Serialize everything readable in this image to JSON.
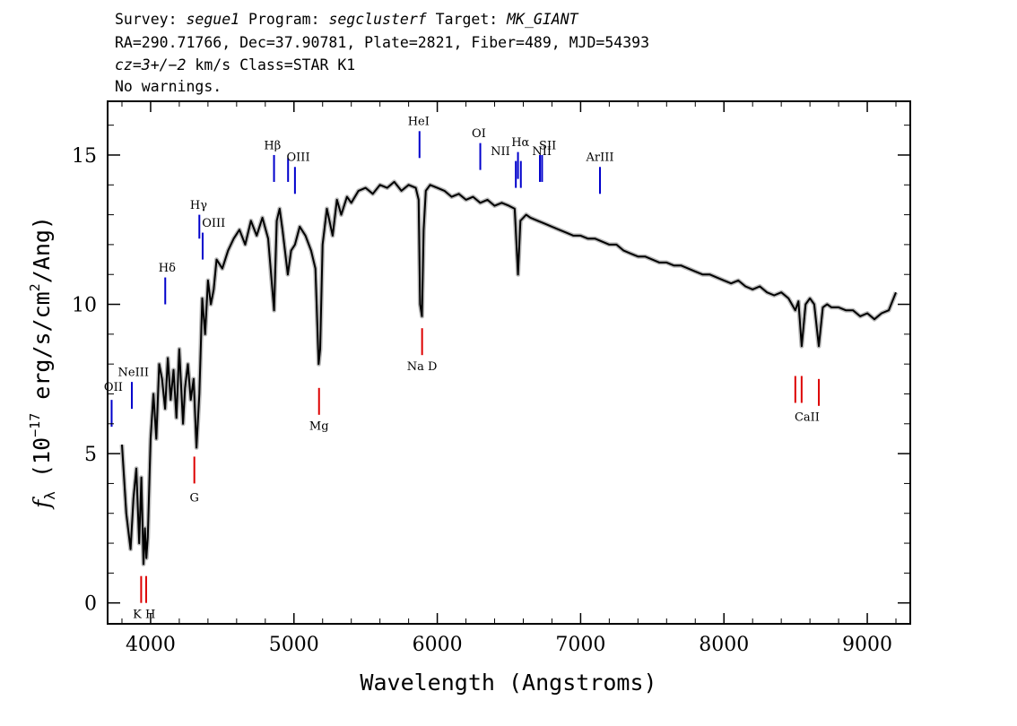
{
  "header": {
    "line1": {
      "survey_key": "Survey: ",
      "survey": "segue1",
      "program_key": " Program: ",
      "program": "segclusterf",
      "target_key": " Target: ",
      "target": "MK_GIANT"
    },
    "line2": "RA=290.71766, Dec=37.90781, Plate=2821, Fiber=489, MJD=54393",
    "line3": {
      "cz": "cz=3+/−2",
      "rest": " km/s Class=STAR K1"
    },
    "line4": "No warnings."
  },
  "chart_data": {
    "type": "line",
    "xlabel": "Wavelength (Angstroms)",
    "ylabel_prefix": "f",
    "ylabel_sub": "λ",
    "ylabel_mid": " (10",
    "ylabel_exp": "−17",
    "ylabel_rest": " erg/s/cm",
    "ylabel_exp2": "2",
    "ylabel_end": "/Ang)",
    "xlim": [
      3700,
      9300
    ],
    "ylim": [
      -0.7,
      16.8
    ],
    "xticks": [
      4000,
      5000,
      6000,
      7000,
      8000,
      9000
    ],
    "xtick_labels": [
      "4000",
      "5000",
      "6000",
      "7000",
      "8000",
      "9000"
    ],
    "yticks": [
      0,
      5,
      10,
      15
    ],
    "ytick_labels": [
      "0",
      "5",
      "10",
      "15"
    ],
    "colors": {
      "flux": "#000000",
      "model": "#bbbbbb",
      "emission": "#0000cc",
      "absorption": "#dd0000"
    },
    "spectrum": {
      "x": [
        3800,
        3830,
        3860,
        3880,
        3900,
        3920,
        3935,
        3950,
        3960,
        3970,
        3980,
        4000,
        4020,
        4040,
        4060,
        4080,
        4101,
        4120,
        4140,
        4160,
        4180,
        4200,
        4226,
        4240,
        4260,
        4280,
        4300,
        4320,
        4340,
        4360,
        4380,
        4400,
        4420,
        4440,
        4460,
        4500,
        4540,
        4580,
        4620,
        4660,
        4700,
        4740,
        4780,
        4820,
        4861,
        4880,
        4900,
        4920,
        4957,
        4980,
        5007,
        5040,
        5080,
        5120,
        5150,
        5172,
        5183,
        5200,
        5230,
        5270,
        5300,
        5330,
        5370,
        5400,
        5450,
        5500,
        5550,
        5600,
        5650,
        5700,
        5750,
        5800,
        5850,
        5870,
        5880,
        5893,
        5905,
        5920,
        5950,
        6000,
        6050,
        6100,
        6150,
        6200,
        6250,
        6300,
        6350,
        6400,
        6450,
        6500,
        6540,
        6563,
        6580,
        6620,
        6650,
        6700,
        6750,
        6800,
        6850,
        6900,
        6950,
        7000,
        7050,
        7100,
        7150,
        7200,
        7250,
        7300,
        7350,
        7400,
        7450,
        7500,
        7550,
        7600,
        7650,
        7700,
        7750,
        7800,
        7850,
        7900,
        7950,
        8000,
        8050,
        8100,
        8150,
        8200,
        8250,
        8300,
        8350,
        8400,
        8450,
        8498,
        8520,
        8542,
        8570,
        8600,
        8630,
        8662,
        8690,
        8720,
        8750,
        8800,
        8850,
        8900,
        8950,
        9000,
        9050,
        9100,
        9150,
        9200
      ],
      "y": [
        5.3,
        3.0,
        1.8,
        3.5,
        4.5,
        2.0,
        4.2,
        1.3,
        2.5,
        1.5,
        2.2,
        5.5,
        7.0,
        5.5,
        8.0,
        7.5,
        6.5,
        8.2,
        6.8,
        7.8,
        6.2,
        8.5,
        6.0,
        7.2,
        8.0,
        6.8,
        7.5,
        5.2,
        7.0,
        10.2,
        9.0,
        10.8,
        10.0,
        10.5,
        11.5,
        11.2,
        11.8,
        12.2,
        12.5,
        12.0,
        12.8,
        12.3,
        12.9,
        12.2,
        9.8,
        12.8,
        13.2,
        12.5,
        11.0,
        11.8,
        12.0,
        12.6,
        12.3,
        11.8,
        11.2,
        8.0,
        8.5,
        12.0,
        13.2,
        12.3,
        13.5,
        13.0,
        13.6,
        13.4,
        13.8,
        13.9,
        13.7,
        14.0,
        13.9,
        14.1,
        13.8,
        14.0,
        13.9,
        13.5,
        10.0,
        9.6,
        12.5,
        13.8,
        14.0,
        13.9,
        13.8,
        13.6,
        13.7,
        13.5,
        13.6,
        13.4,
        13.5,
        13.3,
        13.4,
        13.3,
        13.2,
        11.0,
        12.8,
        13.0,
        12.9,
        12.8,
        12.7,
        12.6,
        12.5,
        12.4,
        12.3,
        12.3,
        12.2,
        12.2,
        12.1,
        12.0,
        12.0,
        11.8,
        11.7,
        11.6,
        11.6,
        11.5,
        11.4,
        11.4,
        11.3,
        11.3,
        11.2,
        11.1,
        11.0,
        11.0,
        10.9,
        10.8,
        10.7,
        10.8,
        10.6,
        10.5,
        10.6,
        10.4,
        10.3,
        10.4,
        10.2,
        9.8,
        10.1,
        8.6,
        10.0,
        10.2,
        10.0,
        8.6,
        9.9,
        10.0,
        9.9,
        9.9,
        9.8,
        9.8,
        9.6,
        9.7,
        9.5,
        9.7,
        9.8,
        10.4
      ]
    },
    "emission_lines": [
      {
        "name": "OII",
        "x": 3728,
        "y1": 5.9,
        "y2": 6.8
      },
      {
        "name": "NeIII",
        "x": 3869,
        "y1": 6.5,
        "y2": 7.4
      },
      {
        "name": "Hδ",
        "x": 4102,
        "y1": 10.0,
        "y2": 10.9
      },
      {
        "name": "Hγ",
        "x": 4340,
        "y1": 12.2,
        "y2": 13.0
      },
      {
        "name": "OIII",
        "x": 4363,
        "y1": 11.5,
        "y2": 12.4
      },
      {
        "name": "Hβ",
        "x": 4861,
        "y1": 14.1,
        "y2": 15.0
      },
      {
        "name": "OIII",
        "x": 4959,
        "y1": 14.1,
        "y2": 14.9
      },
      {
        "name": "OIII",
        "x": 5007,
        "y1": 13.7,
        "y2": 14.6
      },
      {
        "name": "HeI",
        "x": 5876,
        "y1": 14.9,
        "y2": 15.8
      },
      {
        "name": "OI",
        "x": 6300,
        "y1": 14.5,
        "y2": 15.4
      },
      {
        "name": "NII",
        "x": 6548,
        "y1": 13.9,
        "y2": 14.8
      },
      {
        "name": "Hα",
        "x": 6563,
        "y1": 14.2,
        "y2": 15.1
      },
      {
        "name": "NII",
        "x": 6583,
        "y1": 13.9,
        "y2": 14.8
      },
      {
        "name": "SII",
        "x": 6716,
        "y1": 14.1,
        "y2": 15.0
      },
      {
        "name": "SII",
        "x": 6731,
        "y1": 14.1,
        "y2": 15.0
      },
      {
        "name": "ArIII",
        "x": 7135,
        "y1": 13.7,
        "y2": 14.6
      }
    ],
    "absorption_lines": [
      {
        "name": "K",
        "x": 3934,
        "y1": 0.0,
        "y2": 0.9
      },
      {
        "name": "H",
        "x": 3969,
        "y1": 0.0,
        "y2": 0.9
      },
      {
        "name": "G",
        "x": 4305,
        "y1": 4.0,
        "y2": 4.9
      },
      {
        "name": "Mg",
        "x": 5175,
        "y1": 6.3,
        "y2": 7.2
      },
      {
        "name": "Na",
        "x": 5894,
        "y1": 8.3,
        "y2": 9.2
      },
      {
        "name": "CaII",
        "x": 8498,
        "y1": 6.7,
        "y2": 7.6
      },
      {
        "name": "CaII",
        "x": 8542,
        "y1": 6.7,
        "y2": 7.6
      },
      {
        "name": "CaII",
        "x": 8662,
        "y1": 6.6,
        "y2": 7.5
      }
    ],
    "line_labels": [
      {
        "text": "OII",
        "x": 3740,
        "y": 7.1,
        "color": "emission"
      },
      {
        "text": "NeIII",
        "x": 3880,
        "y": 7.6,
        "color": "emission"
      },
      {
        "text": "Hδ",
        "x": 4115,
        "y": 11.1,
        "color": "emission"
      },
      {
        "text": "Hγ",
        "x": 4335,
        "y": 13.2,
        "color": "emission"
      },
      {
        "text": "OIII",
        "x": 4440,
        "y": 12.6,
        "color": "emission"
      },
      {
        "text": "Hβ",
        "x": 4850,
        "y": 15.2,
        "color": "emission"
      },
      {
        "text": "OIII",
        "x": 5030,
        "y": 14.8,
        "color": "emission"
      },
      {
        "text": "HeI",
        "x": 5870,
        "y": 16.0,
        "color": "emission"
      },
      {
        "text": "OI",
        "x": 6290,
        "y": 15.6,
        "color": "emission"
      },
      {
        "text": "NII",
        "x": 6440,
        "y": 15.0,
        "color": "emission"
      },
      {
        "text": "Hα",
        "x": 6580,
        "y": 15.3,
        "color": "emission"
      },
      {
        "text": "NII",
        "x": 6730,
        "y": 15.0,
        "color": "emission"
      },
      {
        "text": "SII",
        "x": 6770,
        "y": 15.2,
        "color": "emission"
      },
      {
        "text": "ArIII",
        "x": 7135,
        "y": 14.8,
        "color": "emission"
      },
      {
        "text": "K H",
        "x": 3955,
        "y": -0.5,
        "color": "absorption"
      },
      {
        "text": "G",
        "x": 4305,
        "y": 3.4,
        "color": "absorption"
      },
      {
        "text": "Mg",
        "x": 5175,
        "y": 5.8,
        "color": "absorption"
      },
      {
        "text": "Na D",
        "x": 5894,
        "y": 7.8,
        "color": "absorption"
      },
      {
        "text": "CaII",
        "x": 8580,
        "y": 6.1,
        "color": "absorption"
      }
    ]
  }
}
